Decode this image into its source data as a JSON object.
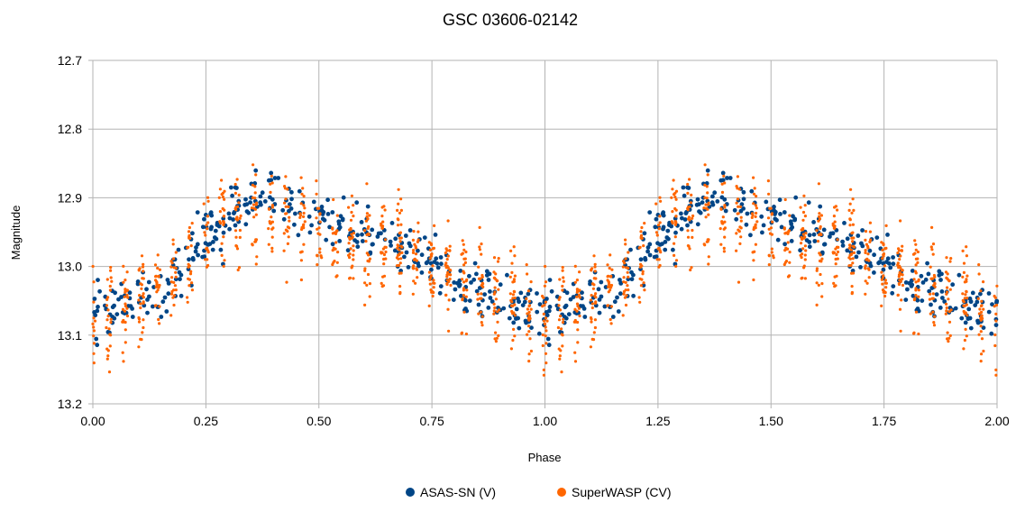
{
  "chart_data": {
    "type": "scatter",
    "title": "GSC 03606-02142",
    "xlabel": "Phase",
    "ylabel": "Magnitude",
    "xlim": [
      0,
      2
    ],
    "ylim": [
      12.7,
      13.2
    ],
    "y_inverted": true,
    "grid": true,
    "legend_position": "bottom",
    "x_ticks": [
      "0.00",
      "0.25",
      "0.50",
      "0.75",
      "1.00",
      "1.25",
      "1.50",
      "1.75",
      "2.00"
    ],
    "y_ticks": [
      "12.7",
      "12.8",
      "12.9",
      "13.0",
      "13.1",
      "13.2"
    ],
    "series": [
      {
        "name": "ASAS-SN (V)",
        "color": "#004586",
        "curve": {
          "phase": [
            0.0,
            0.05,
            0.1,
            0.15,
            0.2,
            0.25,
            0.3,
            0.35,
            0.4,
            0.45,
            0.5,
            0.55,
            0.6,
            0.65,
            0.7,
            0.75,
            0.8,
            0.85,
            0.9,
            0.95,
            1.0
          ],
          "magnitude": [
            13.07,
            13.06,
            13.05,
            13.04,
            13.0,
            12.96,
            12.93,
            12.9,
            12.9,
            12.91,
            12.93,
            12.94,
            12.95,
            12.97,
            12.98,
            12.99,
            13.03,
            13.04,
            13.05,
            13.06,
            13.07
          ]
        },
        "scatter_spread": 0.035
      },
      {
        "name": "SuperWASP (CV)",
        "color": "#ff6600",
        "curve": {
          "phase": [
            0.0,
            0.05,
            0.1,
            0.15,
            0.2,
            0.25,
            0.3,
            0.35,
            0.4,
            0.45,
            0.5,
            0.55,
            0.6,
            0.65,
            0.7,
            0.75,
            0.8,
            0.85,
            0.9,
            0.95,
            1.0
          ],
          "magnitude": [
            13.08,
            13.07,
            13.05,
            13.02,
            13.0,
            12.95,
            12.93,
            12.92,
            12.93,
            12.94,
            12.95,
            12.96,
            12.97,
            12.97,
            12.98,
            13.0,
            13.02,
            13.03,
            13.04,
            13.05,
            13.08
          ]
        },
        "scatter_spread": 0.06
      }
    ]
  }
}
